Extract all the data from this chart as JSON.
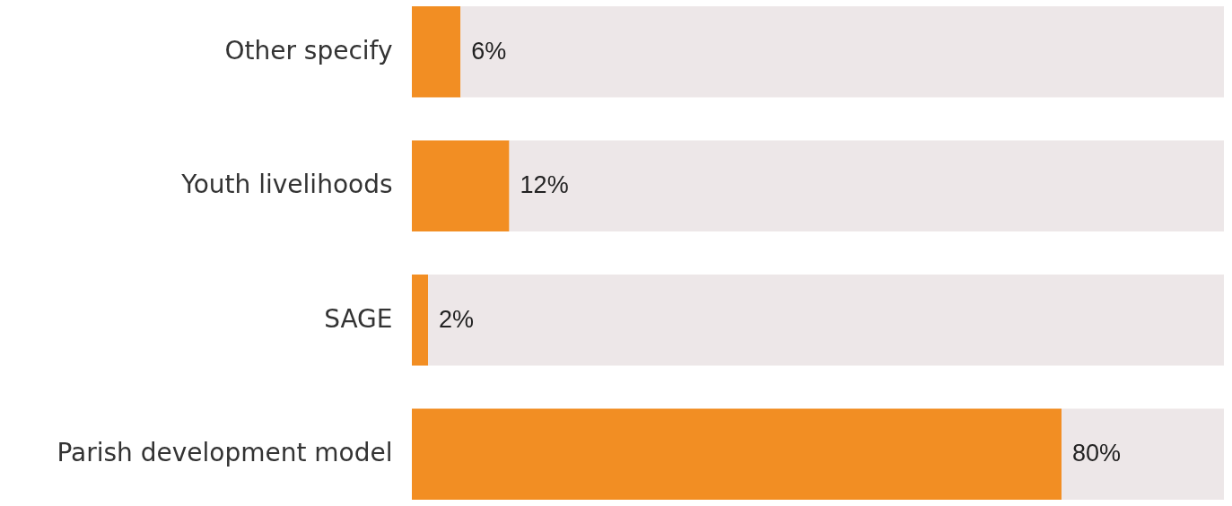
{
  "chart_data": {
    "type": "bar",
    "orientation": "horizontal",
    "stacked": true,
    "categories": [
      "Other specify",
      "Youth livelihoods",
      "SAGE",
      "Parish development model"
    ],
    "series": [
      {
        "color": "#f28e23",
        "values": [
          6,
          12,
          2,
          80
        ],
        "value_labels": [
          "6%",
          "12%",
          "2%",
          "80%"
        ]
      },
      {
        "color": "#ede7e8",
        "values": [
          94,
          88,
          98,
          20
        ]
      }
    ],
    "xlim": [
      0,
      100
    ],
    "tick_labels": "y"
  }
}
